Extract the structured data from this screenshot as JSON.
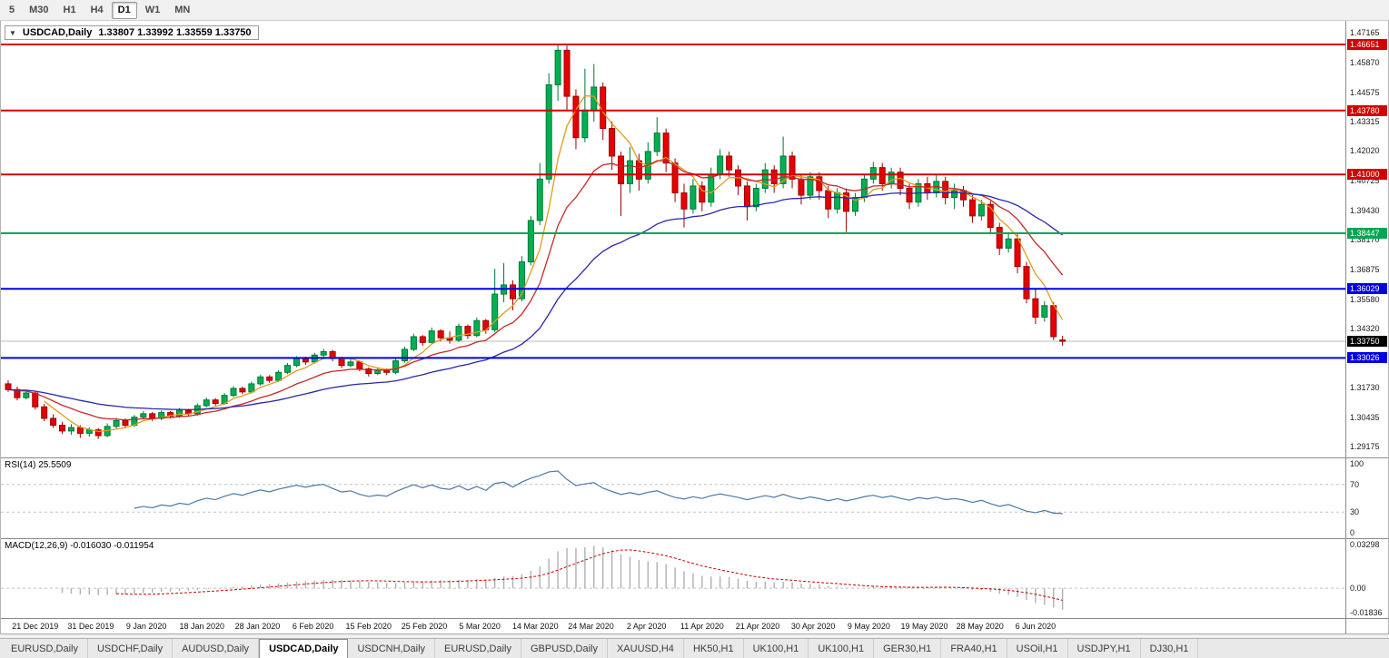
{
  "toolbar": {
    "timeframes": [
      "5",
      "M30",
      "H1",
      "H4",
      "D1",
      "W1",
      "MN"
    ],
    "active": "D1"
  },
  "chart": {
    "triangle": "▼",
    "title": "USDCAD,Daily",
    "ohlc": "1.33807 1.33992 1.33559 1.33750"
  },
  "rsi": {
    "label": "RSI(14)",
    "value": "25.5509",
    "color": "#4a7aa8",
    "scale": [
      {
        "v": 100,
        "label": "100"
      },
      {
        "v": 70,
        "label": "70"
      },
      {
        "v": 30,
        "label": "30"
      },
      {
        "v": 0,
        "label": "0"
      }
    ],
    "dashed_levels": [
      70,
      30
    ]
  },
  "macd": {
    "label": "MACD(12,26,9)",
    "values": "-0.016030 -0.011954",
    "params": [
      12,
      26,
      9
    ],
    "hist_color": "#b0b0b0",
    "signal_color": "#cc0000",
    "range": [
      -0.0215,
      0.0355
    ],
    "scale": [
      {
        "v": 0.03298,
        "label": "0.03298"
      },
      {
        "v": 0,
        "label": "0.00"
      },
      {
        "v": -0.01836,
        "label": "-0.01836"
      }
    ]
  },
  "tabs": {
    "active_index": 3,
    "items": [
      "EURUSD,Daily",
      "USDCHF,Daily",
      "AUDUSD,Daily",
      "USDCAD,Daily",
      "USDCNH,Daily",
      "EURUSD,Daily",
      "GBPUSD,Daily",
      "XAUUSD,H4",
      "HK50,H1",
      "UK100,H1",
      "UK100,H1",
      "GER30,H1",
      "FRA40,H1",
      "USOil,H1",
      "USDJPY,H1",
      "DJ30,H1"
    ]
  },
  "chart_data": {
    "type": "candlestick",
    "symbol": "USDCAD",
    "timeframe": "Daily",
    "y_range": [
      1.29175,
      1.47165
    ],
    "up_color": "#00b050",
    "up_border": "#00773a",
    "down_color": "#e80000",
    "down_border": "#9a0000",
    "current": {
      "price": 1.3375,
      "label": "1.33750",
      "color": "#000000"
    },
    "price_ticks": [
      "1.47165",
      "1.45870",
      "1.44575",
      "1.43315",
      "1.42020",
      "1.40725",
      "1.39430",
      "1.38170",
      "1.36875",
      "1.35580",
      "1.34320",
      "1.31730",
      "1.30435",
      "1.29175"
    ],
    "hlines": [
      {
        "price": 1.46651,
        "label": "1.46651",
        "color": "#d40000"
      },
      {
        "price": 1.4378,
        "label": "1.43780",
        "color": "#d40000"
      },
      {
        "price": 1.41,
        "label": "1.41000",
        "color": "#d40000"
      },
      {
        "price": 1.38447,
        "label": "1.38447",
        "color": "#00a651"
      },
      {
        "price": 1.36029,
        "label": "1.36029",
        "color": "#0000e0"
      },
      {
        "price": 1.33026,
        "label": "1.33026",
        "color": "#0000e0"
      }
    ],
    "ma": [
      {
        "type": "sma",
        "period": 5,
        "color": "#df9c1e"
      },
      {
        "type": "ema",
        "period": 13,
        "color": "#c62828"
      },
      {
        "type": "ema",
        "period": 34,
        "color": "#2828aa"
      }
    ],
    "x_labels": [
      "21 Dec 2019",
      "31 Dec 2019",
      "9 Jan 2020",
      "18 Jan 2020",
      "28 Jan 2020",
      "6 Feb 2020",
      "15 Feb 2020",
      "25 Feb 2020",
      "5 Mar 2020",
      "14 Mar 2020",
      "24 Mar 2020",
      "2 Apr 2020",
      "11 Apr 2020",
      "21 Apr 2020",
      "30 Apr 2020",
      "9 May 2020",
      "19 May 2020",
      "28 May 2020",
      "6 Jun 2020"
    ],
    "candles": [
      [
        1.319,
        1.3205,
        1.3155,
        1.3165
      ],
      [
        1.3165,
        1.3178,
        1.3118,
        1.313
      ],
      [
        1.313,
        1.3162,
        1.3122,
        1.315
      ],
      [
        1.315,
        1.3158,
        1.3078,
        1.309
      ],
      [
        1.309,
        1.3102,
        1.3028,
        1.304
      ],
      [
        1.304,
        1.3058,
        1.2998,
        1.301
      ],
      [
        1.301,
        1.3025,
        1.2972,
        1.2985
      ],
      [
        1.2985,
        1.3015,
        1.2968,
        1.3
      ],
      [
        1.3,
        1.301,
        1.2955,
        1.2975
      ],
      [
        1.2975,
        1.3002,
        1.296,
        1.299
      ],
      [
        1.299,
        1.2998,
        1.295,
        1.2965
      ],
      [
        1.2965,
        1.3018,
        1.2958,
        1.3005
      ],
      [
        1.3005,
        1.3042,
        1.2995,
        1.303
      ],
      [
        1.303,
        1.304,
        1.2998,
        1.301
      ],
      [
        1.301,
        1.3055,
        1.3002,
        1.3045
      ],
      [
        1.3045,
        1.3072,
        1.3035,
        1.306
      ],
      [
        1.306,
        1.3068,
        1.3028,
        1.304
      ],
      [
        1.304,
        1.3075,
        1.3032,
        1.3065
      ],
      [
        1.3065,
        1.3072,
        1.304,
        1.305
      ],
      [
        1.305,
        1.3085,
        1.3042,
        1.3075
      ],
      [
        1.3075,
        1.3082,
        1.3048,
        1.306
      ],
      [
        1.306,
        1.3105,
        1.3052,
        1.3095
      ],
      [
        1.3095,
        1.313,
        1.3088,
        1.312
      ],
      [
        1.312,
        1.3128,
        1.3095,
        1.3105
      ],
      [
        1.3105,
        1.315,
        1.3098,
        1.314
      ],
      [
        1.314,
        1.318,
        1.3132,
        1.317
      ],
      [
        1.317,
        1.3178,
        1.3145,
        1.3155
      ],
      [
        1.3155,
        1.32,
        1.3148,
        1.319
      ],
      [
        1.319,
        1.323,
        1.3182,
        1.322
      ],
      [
        1.322,
        1.3228,
        1.3195,
        1.3205
      ],
      [
        1.3205,
        1.325,
        1.3198,
        1.324
      ],
      [
        1.324,
        1.328,
        1.3232,
        1.327
      ],
      [
        1.327,
        1.331,
        1.3262,
        1.33
      ],
      [
        1.33,
        1.3308,
        1.3272,
        1.3285
      ],
      [
        1.3285,
        1.3325,
        1.3278,
        1.3315
      ],
      [
        1.3315,
        1.3342,
        1.3305,
        1.333
      ],
      [
        1.333,
        1.3338,
        1.3288,
        1.33
      ],
      [
        1.33,
        1.3308,
        1.3258,
        1.327
      ],
      [
        1.327,
        1.3298,
        1.3262,
        1.3285
      ],
      [
        1.3285,
        1.3292,
        1.3245,
        1.3255
      ],
      [
        1.3255,
        1.3262,
        1.3222,
        1.3235
      ],
      [
        1.3235,
        1.3262,
        1.3228,
        1.325
      ],
      [
        1.325,
        1.3258,
        1.3228,
        1.324
      ],
      [
        1.324,
        1.3302,
        1.3232,
        1.329
      ],
      [
        1.329,
        1.3352,
        1.3282,
        1.334
      ],
      [
        1.334,
        1.3408,
        1.3332,
        1.3395
      ],
      [
        1.3395,
        1.3402,
        1.3355,
        1.337
      ],
      [
        1.337,
        1.3435,
        1.3362,
        1.342
      ],
      [
        1.342,
        1.3428,
        1.3375,
        1.339
      ],
      [
        1.339,
        1.3418,
        1.3365,
        1.338
      ],
      [
        1.338,
        1.3452,
        1.3372,
        1.344
      ],
      [
        1.344,
        1.3448,
        1.3385,
        1.34
      ],
      [
        1.34,
        1.3478,
        1.3392,
        1.3465
      ],
      [
        1.3465,
        1.3472,
        1.3408,
        1.3425
      ],
      [
        1.3425,
        1.369,
        1.3415,
        1.358
      ],
      [
        1.358,
        1.3715,
        1.3545,
        1.362
      ],
      [
        1.362,
        1.364,
        1.351,
        1.356
      ],
      [
        1.356,
        1.3745,
        1.3548,
        1.372
      ],
      [
        1.372,
        1.392,
        1.3705,
        1.39
      ],
      [
        1.39,
        1.415,
        1.388,
        1.408
      ],
      [
        1.408,
        1.454,
        1.406,
        1.449
      ],
      [
        1.449,
        1.4669,
        1.442,
        1.464
      ],
      [
        1.464,
        1.466,
        1.438,
        1.444
      ],
      [
        1.444,
        1.447,
        1.421,
        1.426
      ],
      [
        1.426,
        1.456,
        1.424,
        1.438
      ],
      [
        1.438,
        1.458,
        1.433,
        1.448
      ],
      [
        1.448,
        1.45,
        1.425,
        1.43
      ],
      [
        1.43,
        1.433,
        1.412,
        1.418
      ],
      [
        1.418,
        1.42,
        1.392,
        1.406
      ],
      [
        1.406,
        1.422,
        1.402,
        1.416
      ],
      [
        1.416,
        1.419,
        1.403,
        1.408
      ],
      [
        1.408,
        1.424,
        1.406,
        1.42
      ],
      [
        1.42,
        1.4349,
        1.418,
        1.428
      ],
      [
        1.428,
        1.43,
        1.411,
        1.415
      ],
      [
        1.415,
        1.417,
        1.398,
        1.402
      ],
      [
        1.402,
        1.406,
        1.387,
        1.395
      ],
      [
        1.395,
        1.408,
        1.393,
        1.405
      ],
      [
        1.405,
        1.407,
        1.394,
        1.398
      ],
      [
        1.398,
        1.413,
        1.396,
        1.41
      ],
      [
        1.41,
        1.421,
        1.408,
        1.418
      ],
      [
        1.418,
        1.42,
        1.409,
        1.412
      ],
      [
        1.412,
        1.414,
        1.401,
        1.405
      ],
      [
        1.405,
        1.407,
        1.39,
        1.396
      ],
      [
        1.396,
        1.406,
        1.394,
        1.404
      ],
      [
        1.404,
        1.415,
        1.402,
        1.412
      ],
      [
        1.412,
        1.414,
        1.402,
        1.406
      ],
      [
        1.406,
        1.4265,
        1.404,
        1.418
      ],
      [
        1.418,
        1.42,
        1.404,
        1.408
      ],
      [
        1.408,
        1.41,
        1.397,
        1.401
      ],
      [
        1.401,
        1.411,
        1.399,
        1.409
      ],
      [
        1.409,
        1.411,
        1.399,
        1.403
      ],
      [
        1.403,
        1.405,
        1.391,
        1.395
      ],
      [
        1.395,
        1.404,
        1.393,
        1.402
      ],
      [
        1.402,
        1.404,
        1.385,
        1.394
      ],
      [
        1.394,
        1.402,
        1.392,
        1.4
      ],
      [
        1.4,
        1.41,
        1.398,
        1.408
      ],
      [
        1.408,
        1.4155,
        1.406,
        1.413
      ],
      [
        1.413,
        1.415,
        1.403,
        1.406
      ],
      [
        1.406,
        1.413,
        1.404,
        1.411
      ],
      [
        1.411,
        1.413,
        1.401,
        1.404
      ],
      [
        1.404,
        1.406,
        1.395,
        1.398
      ],
      [
        1.398,
        1.408,
        1.396,
        1.406
      ],
      [
        1.406,
        1.409,
        1.399,
        1.402
      ],
      [
        1.402,
        1.41,
        1.4,
        1.407
      ],
      [
        1.407,
        1.409,
        1.397,
        1.4
      ],
      [
        1.4,
        1.406,
        1.395,
        1.403
      ],
      [
        1.403,
        1.405,
        1.396,
        1.399
      ],
      [
        1.399,
        1.401,
        1.389,
        1.392
      ],
      [
        1.392,
        1.399,
        1.39,
        1.397
      ],
      [
        1.397,
        1.3985,
        1.384,
        1.387
      ],
      [
        1.387,
        1.389,
        1.375,
        1.378
      ],
      [
        1.378,
        1.385,
        1.376,
        1.382
      ],
      [
        1.382,
        1.384,
        1.367,
        1.37
      ],
      [
        1.37,
        1.372,
        1.354,
        1.356
      ],
      [
        1.356,
        1.36,
        1.345,
        1.348
      ],
      [
        1.348,
        1.355,
        1.346,
        1.353
      ],
      [
        1.353,
        1.3545,
        1.338,
        1.3395
      ],
      [
        1.33807,
        1.33992,
        1.33559,
        1.3375
      ]
    ]
  }
}
